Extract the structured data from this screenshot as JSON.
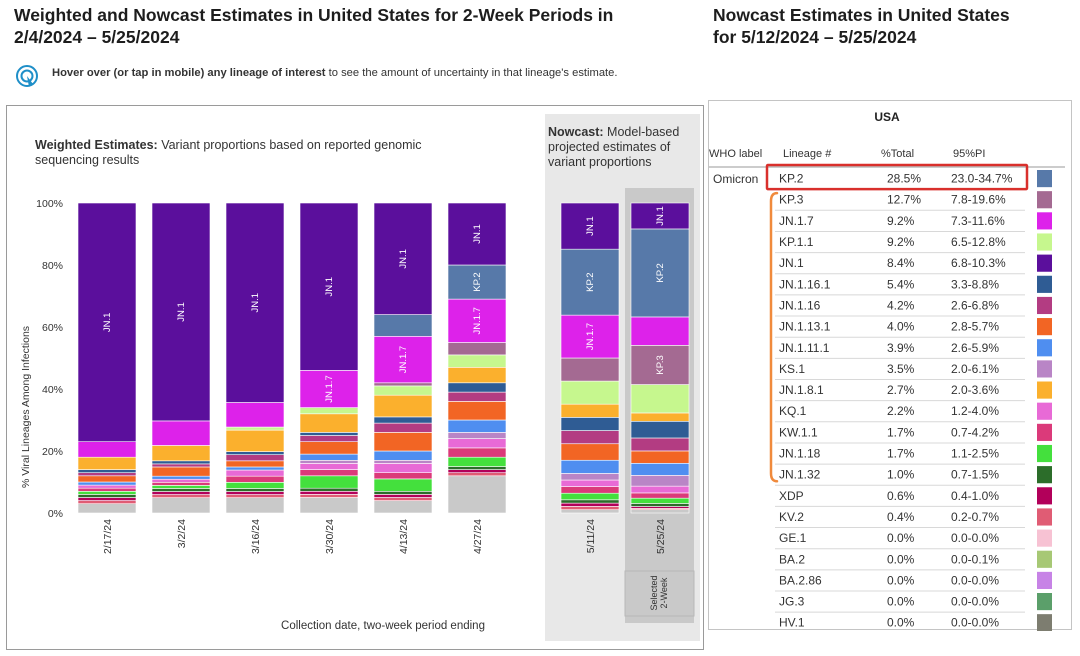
{
  "header": {
    "title_line1": "Weighted and Nowcast Estimates in United States for 2-Week Periods in",
    "title_line2": "2/4/2024 – 5/25/2024",
    "side_title_line1": "Nowcast Estimates in United States",
    "side_title_line2": "for 5/12/2024 – 5/25/2024",
    "hint_bold_1": "Hover over (or tap in mobile) any ",
    "hint_bold_2": "lineage of interest",
    "hint_rest": " to see the amount of uncertainty in that lineage's estimate."
  },
  "panels": {
    "weighted_title_bold": "Weighted Estimates:",
    "weighted_title_rest_1": " Variant proportions based on reported genomic",
    "weighted_title_rest_2": "sequencing results",
    "nowcast_title_bold": "Nowcast:",
    "nowcast_title_rest_1": " Model-based",
    "nowcast_title_rest_2": "projected estimates of",
    "nowcast_title_rest_3": "variant proportions",
    "selected_label_1": "Selected",
    "selected_label_2": "2-Week"
  },
  "chart_data": {
    "type": "bar",
    "stacked": true,
    "ylabel": "% Viral Lineages Among Infections",
    "xlabel": "Collection date, two-week period ending",
    "ylim": [
      0,
      100
    ],
    "yticks": [
      "0%",
      "20%",
      "40%",
      "60%",
      "80%",
      "100%"
    ],
    "categories": [
      "2/17/24",
      "3/2/24",
      "3/16/24",
      "3/30/24",
      "4/13/24",
      "4/27/24",
      "5/11/24",
      "5/25/24"
    ],
    "nowcast_categories": [
      "5/11/24",
      "5/25/24"
    ],
    "selected_category": "5/25/24",
    "colors": {
      "JN.1": "#5b0f9c",
      "JN.1.7": "#dd22ea",
      "KP.2": "#5779a9",
      "KP.3": "#a46a92",
      "KP.1.1": "#c6f78e",
      "JN.1.16.1": "#2f5c94",
      "JN.1.16": "#b33c82",
      "JN.1.13.1": "#f26524",
      "JN.1.11.1": "#4f8ef0",
      "KS.1": "#b985c6",
      "JN.1.8.1": "#fbb02d",
      "KQ.1": "#e86ad6",
      "KW.1.1": "#db3a7a",
      "JN.1.18": "#44e03d",
      "JN.1.32": "#2c6d2a",
      "XDP": "#b2005a",
      "KV.2": "#e05c74",
      "GE.1": "#f7c2d3",
      "BA.2": "#a7c875",
      "BA.2.86": "#c783e6",
      "JG.3": "#5b9f6a",
      "HV.1": "#7d7d70",
      "Other": "#c9c9c9"
    },
    "series": [
      {
        "name": "JN.1",
        "values": [
          77,
          71,
          65,
          54,
          36,
          20,
          14,
          8.4
        ]
      },
      {
        "name": "KP.2",
        "values": [
          0,
          0,
          0,
          0,
          7,
          11,
          20,
          28.5
        ]
      },
      {
        "name": "JN.1.7",
        "values": [
          5,
          8,
          8,
          12,
          15,
          14,
          13,
          9.2
        ]
      },
      {
        "name": "KP.3",
        "values": [
          0,
          0,
          0,
          0,
          1,
          4,
          7,
          12.7
        ]
      },
      {
        "name": "KP.1.1",
        "values": [
          0,
          0,
          1,
          2,
          3,
          4,
          7,
          9.2
        ]
      },
      {
        "name": "JN.1.8.1",
        "values": [
          4,
          5,
          7,
          6,
          7,
          5,
          4,
          2.7
        ]
      },
      {
        "name": "JN.1.16.1",
        "values": [
          1,
          1,
          1,
          1,
          2,
          3,
          4,
          5.4
        ]
      },
      {
        "name": "JN.1.16",
        "values": [
          1,
          1,
          2,
          2,
          3,
          3,
          4,
          4.2
        ]
      },
      {
        "name": "JN.1.13.1",
        "values": [
          2,
          3,
          2,
          4,
          6,
          6,
          5,
          4.0
        ]
      },
      {
        "name": "JN.1.11.1",
        "values": [
          1,
          1,
          1,
          2,
          3,
          4,
          4,
          3.9
        ]
      },
      {
        "name": "KS.1",
        "values": [
          0,
          0,
          0,
          1,
          1,
          2,
          2,
          3.5
        ]
      },
      {
        "name": "KQ.1",
        "values": [
          1,
          1,
          2,
          2,
          3,
          3,
          2,
          2.2
        ]
      },
      {
        "name": "KW.1.1",
        "values": [
          1,
          1,
          2,
          2,
          2,
          3,
          2,
          1.7
        ]
      },
      {
        "name": "JN.1.18",
        "values": [
          1,
          1,
          2,
          4,
          4,
          3,
          2,
          1.7
        ]
      },
      {
        "name": "JN.1.32",
        "values": [
          1,
          1,
          1,
          1,
          1,
          1,
          1,
          1.0
        ]
      },
      {
        "name": "XDP",
        "values": [
          1,
          1,
          1,
          1,
          1,
          1,
          1,
          0.6
        ]
      },
      {
        "name": "KV.2",
        "values": [
          1,
          1,
          1,
          1,
          1,
          1,
          1,
          0.4
        ]
      },
      {
        "name": "Other",
        "values": [
          3,
          5,
          5,
          5,
          4,
          12,
          1,
          1.1
        ]
      }
    ],
    "bar_labels": [
      {
        "bar": 0,
        "lineage": "JN.1",
        "text": "JN.1"
      },
      {
        "bar": 1,
        "lineage": "JN.1",
        "text": "JN.1"
      },
      {
        "bar": 2,
        "lineage": "JN.1",
        "text": "JN.1"
      },
      {
        "bar": 3,
        "lineage": "JN.1",
        "text": "JN.1"
      },
      {
        "bar": 3,
        "lineage": "JN.1.7",
        "text": "JN.1.7"
      },
      {
        "bar": 4,
        "lineage": "JN.1",
        "text": "JN.1"
      },
      {
        "bar": 4,
        "lineage": "JN.1.7",
        "text": "JN.1.7"
      },
      {
        "bar": 5,
        "lineage": "JN.1",
        "text": "JN.1"
      },
      {
        "bar": 5,
        "lineage": "KP.2",
        "text": "KP.2"
      },
      {
        "bar": 5,
        "lineage": "JN.1.7",
        "text": "JN.1.7"
      },
      {
        "bar": 6,
        "lineage": "JN.1",
        "text": "JN.1"
      },
      {
        "bar": 6,
        "lineage": "KP.2",
        "text": "KP.2"
      },
      {
        "bar": 6,
        "lineage": "JN.1.7",
        "text": "JN.1.7"
      },
      {
        "bar": 7,
        "lineage": "JN.1",
        "text": "JN.1"
      },
      {
        "bar": 7,
        "lineage": "KP.2",
        "text": "KP.2"
      },
      {
        "bar": 7,
        "lineage": "KP.3",
        "text": "KP.3"
      }
    ]
  },
  "table": {
    "region": "USA",
    "headers": [
      "WHO label",
      "Lineage #",
      "%Total",
      "95%PI"
    ],
    "who_label": "Omicron",
    "highlight_color": "#d9302c",
    "bracket_color": "#f08a3c",
    "rows": [
      {
        "lineage": "KP.2",
        "total": "28.5%",
        "pi": "23.0-34.7%",
        "color": "#5779a9"
      },
      {
        "lineage": "KP.3",
        "total": "12.7%",
        "pi": "7.8-19.6%",
        "color": "#a46a92"
      },
      {
        "lineage": "JN.1.7",
        "total": "9.2%",
        "pi": "7.3-11.6%",
        "color": "#dd22ea"
      },
      {
        "lineage": "KP.1.1",
        "total": "9.2%",
        "pi": "6.5-12.8%",
        "color": "#c6f78e"
      },
      {
        "lineage": "JN.1",
        "total": "8.4%",
        "pi": "6.8-10.3%",
        "color": "#5b0f9c"
      },
      {
        "lineage": "JN.1.16.1",
        "total": "5.4%",
        "pi": "3.3-8.8%",
        "color": "#2f5c94"
      },
      {
        "lineage": "JN.1.16",
        "total": "4.2%",
        "pi": "2.6-6.8%",
        "color": "#b33c82"
      },
      {
        "lineage": "JN.1.13.1",
        "total": "4.0%",
        "pi": "2.8-5.7%",
        "color": "#f26524"
      },
      {
        "lineage": "JN.1.11.1",
        "total": "3.9%",
        "pi": "2.6-5.9%",
        "color": "#4f8ef0"
      },
      {
        "lineage": "KS.1",
        "total": "3.5%",
        "pi": "2.0-6.1%",
        "color": "#b985c6"
      },
      {
        "lineage": "JN.1.8.1",
        "total": "2.7%",
        "pi": "2.0-3.6%",
        "color": "#fbb02d"
      },
      {
        "lineage": "KQ.1",
        "total": "2.2%",
        "pi": "1.2-4.0%",
        "color": "#e86ad6"
      },
      {
        "lineage": "KW.1.1",
        "total": "1.7%",
        "pi": "0.7-4.2%",
        "color": "#db3a7a"
      },
      {
        "lineage": "JN.1.18",
        "total": "1.7%",
        "pi": "1.1-2.5%",
        "color": "#44e03d"
      },
      {
        "lineage": "JN.1.32",
        "total": "1.0%",
        "pi": "0.7-1.5%",
        "color": "#2c6d2a"
      },
      {
        "lineage": "XDP",
        "total": "0.6%",
        "pi": "0.4-1.0%",
        "color": "#b2005a"
      },
      {
        "lineage": "KV.2",
        "total": "0.4%",
        "pi": "0.2-0.7%",
        "color": "#e05c74"
      },
      {
        "lineage": "GE.1",
        "total": "0.0%",
        "pi": "0.0-0.0%",
        "color": "#f7c2d3"
      },
      {
        "lineage": "BA.2",
        "total": "0.0%",
        "pi": "0.0-0.1%",
        "color": "#a7c875"
      },
      {
        "lineage": "BA.2.86",
        "total": "0.0%",
        "pi": "0.0-0.0%",
        "color": "#c783e6"
      },
      {
        "lineage": "JG.3",
        "total": "0.0%",
        "pi": "0.0-0.0%",
        "color": "#5b9f6a"
      },
      {
        "lineage": "HV.1",
        "total": "0.0%",
        "pi": "0.0-0.0%",
        "color": "#7d7d70"
      }
    ]
  }
}
